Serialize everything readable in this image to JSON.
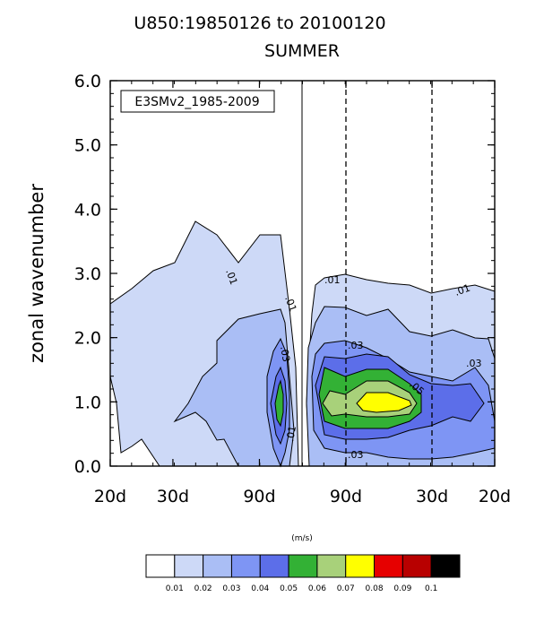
{
  "chart_data": {
    "type": "contour",
    "title": "U850:19850126 to 20100120",
    "subtitle": "SUMMER",
    "ylabel": "zonal wavenumber",
    "ylim": [
      0,
      6
    ],
    "y_ticks": [
      "0.0",
      "1.0",
      "2.0",
      "3.0",
      "4.0",
      "5.0",
      "6.0"
    ],
    "x_ticks": [
      "20d",
      "30d",
      "90d",
      "90d",
      "30d",
      "20d"
    ],
    "annotation": "E3SMv2_1985-2009",
    "colorbar_unit": "(m/s)",
    "colorbar_levels": [
      "0.01",
      "0.02",
      "0.03",
      "0.04",
      "0.05",
      "0.06",
      "0.07",
      "0.08",
      "0.09",
      "0.1"
    ],
    "colorbar_colors": [
      "#ffffff",
      "#cdd9f7",
      "#aabef5",
      "#7e95f4",
      "#5c6ee9",
      "#33b135",
      "#a8d17a",
      "#ffff00",
      "#e60000",
      "#b80000",
      "#000000"
    ],
    "contour_labels": [
      ".01",
      ".01",
      ".01",
      ".01",
      ".01",
      ".03",
      ".03",
      ".03",
      ".03",
      ".05"
    ]
  }
}
